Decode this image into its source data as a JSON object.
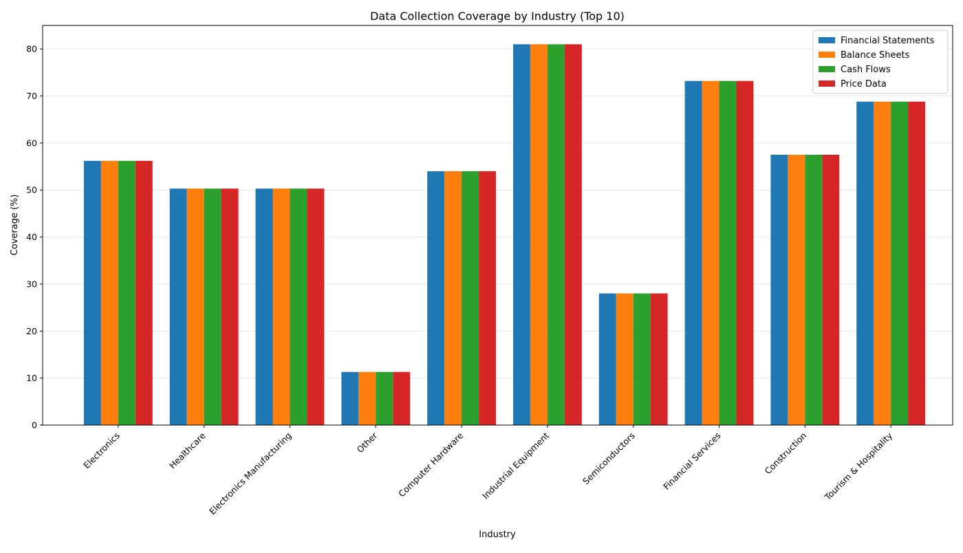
{
  "chart_data": {
    "type": "bar",
    "title": "Data Collection Coverage by Industry (Top 10)",
    "xlabel": "Industry",
    "ylabel": "Coverage (%)",
    "ylim": [
      0,
      85
    ],
    "yticks": [
      0,
      10,
      20,
      30,
      40,
      50,
      60,
      70,
      80
    ],
    "grid": "y-axis, light",
    "legend_position": "top-right",
    "categories": [
      "Electronics",
      "Healthcare",
      "Electronics Manufacturing",
      "Other",
      "Computer Hardware",
      "Industrial Equipment",
      "Semiconductors",
      "Financial Services",
      "Construction",
      "Tourism & Hospitality"
    ],
    "series": [
      {
        "name": "Financial Statements",
        "color": "#1f77b4",
        "values": [
          56.2,
          50.3,
          50.3,
          11.3,
          54.0,
          81.0,
          28.0,
          73.2,
          57.5,
          68.8
        ]
      },
      {
        "name": "Balance Sheets",
        "color": "#ff7f0e",
        "values": [
          56.2,
          50.3,
          50.3,
          11.3,
          54.0,
          81.0,
          28.0,
          73.2,
          57.5,
          68.8
        ]
      },
      {
        "name": "Cash Flows",
        "color": "#2ca02c",
        "values": [
          56.2,
          50.3,
          50.3,
          11.3,
          54.0,
          81.0,
          28.0,
          73.2,
          57.5,
          68.8
        ]
      },
      {
        "name": "Price Data",
        "color": "#d62728",
        "values": [
          56.2,
          50.3,
          50.3,
          11.3,
          54.0,
          81.0,
          28.0,
          73.2,
          57.5,
          68.8
        ]
      }
    ]
  }
}
